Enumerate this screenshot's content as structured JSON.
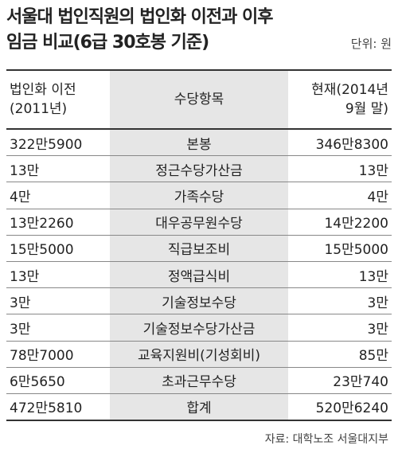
{
  "title": {
    "line1": "서울대 법인직원의 법인화 이전과 이후",
    "line2": "임금 비교(6급 30호봉 기준)",
    "unit": "단위: 원"
  },
  "table": {
    "headers": {
      "before_1": "법인화 이전",
      "before_2": "(2011년)",
      "item": "수당항목",
      "now_1": "현재(2014년",
      "now_2": "9월 말)"
    },
    "rows": [
      {
        "before": "322만5900",
        "item": "본봉",
        "now": "346만8300"
      },
      {
        "before": "13만",
        "item": "정근수당가산금",
        "now": "13만"
      },
      {
        "before": "4만",
        "item": "가족수당",
        "now": "4만"
      },
      {
        "before": "13만2260",
        "item": "대우공무원수당",
        "now": "14만2200"
      },
      {
        "before": "15만5000",
        "item": "직급보조비",
        "now": "15만5000"
      },
      {
        "before": "13만",
        "item": "정액급식비",
        "now": "13만"
      },
      {
        "before": "3만",
        "item": "기술정보수당",
        "now": "3만"
      },
      {
        "before": "3만",
        "item": "기술정보수당가산금",
        "now": "3만"
      },
      {
        "before": "78만7000",
        "item": "교육지원비(기성회비)",
        "now": "85만"
      },
      {
        "before": "6만5650",
        "item": "초과근무수당",
        "now": "23만740"
      },
      {
        "before": "472만5810",
        "item": "합계",
        "now": "520만6240"
      }
    ]
  },
  "source": "자료: 대학노조 서울대지부"
}
